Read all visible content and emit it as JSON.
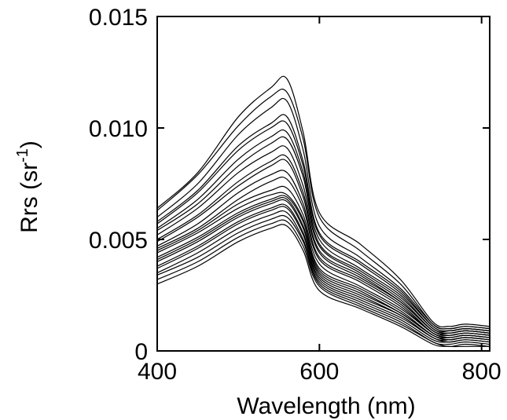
{
  "chart_data": {
    "type": "line",
    "title": "",
    "xlabel": "Wavelength (nm)",
    "ylabel_main": "Rrs (sr",
    "ylabel_sup": "-1",
    "ylabel_close": ")",
    "xlim": [
      400,
      810
    ],
    "ylim": [
      0,
      0.015
    ],
    "xticks": [
      400,
      600,
      800
    ],
    "xtick_labels": [
      "400",
      "600",
      "800"
    ],
    "yticks": [
      0,
      0.005,
      0.01,
      0.015
    ],
    "ytick_labels": [
      "0",
      "0.005",
      "0.010",
      "0.015"
    ],
    "grid": false,
    "legend": "none",
    "line_color": "#000000",
    "x": [
      400,
      450,
      500,
      540,
      560,
      580,
      600,
      650,
      700,
      740,
      760,
      780,
      810
    ],
    "series": [
      {
        "values": [
          0.0064,
          0.008,
          0.0105,
          0.0118,
          0.0122,
          0.0098,
          0.0062,
          0.0048,
          0.0032,
          0.0013,
          0.0011,
          0.0012,
          0.0011
        ]
      },
      {
        "values": [
          0.0063,
          0.0079,
          0.0101,
          0.0114,
          0.0116,
          0.0095,
          0.006,
          0.0045,
          0.003,
          0.0012,
          0.001,
          0.0011,
          0.001
        ]
      },
      {
        "values": [
          0.006,
          0.0075,
          0.0097,
          0.0109,
          0.0112,
          0.009,
          0.0056,
          0.0042,
          0.0028,
          0.0012,
          0.001,
          0.0011,
          0.001
        ]
      },
      {
        "values": [
          0.0058,
          0.0072,
          0.0092,
          0.0102,
          0.0105,
          0.0085,
          0.0053,
          0.004,
          0.0027,
          0.0011,
          0.0009,
          0.001,
          0.0009
        ]
      },
      {
        "values": [
          0.0057,
          0.0071,
          0.009,
          0.01,
          0.0102,
          0.0083,
          0.0052,
          0.0039,
          0.0026,
          0.0011,
          0.0009,
          0.001,
          0.0009
        ]
      },
      {
        "values": [
          0.0055,
          0.0068,
          0.0086,
          0.0096,
          0.0098,
          0.008,
          0.005,
          0.0037,
          0.0025,
          0.001,
          0.0009,
          0.001,
          0.0009
        ]
      },
      {
        "values": [
          0.0054,
          0.0066,
          0.0083,
          0.0093,
          0.0095,
          0.0078,
          0.0048,
          0.0036,
          0.0024,
          0.001,
          0.0008,
          0.0009,
          0.0008
        ]
      },
      {
        "values": [
          0.0052,
          0.0064,
          0.008,
          0.0089,
          0.0091,
          0.0074,
          0.0047,
          0.0035,
          0.0023,
          0.0009,
          0.0008,
          0.0009,
          0.0008
        ]
      },
      {
        "values": [
          0.005,
          0.0061,
          0.0076,
          0.0085,
          0.0087,
          0.0071,
          0.0045,
          0.0034,
          0.0022,
          0.0009,
          0.0008,
          0.0009,
          0.0008
        ]
      },
      {
        "values": [
          0.0049,
          0.006,
          0.0074,
          0.0083,
          0.0085,
          0.0069,
          0.0044,
          0.0033,
          0.0022,
          0.0009,
          0.0007,
          0.0008,
          0.0007
        ]
      },
      {
        "values": [
          0.0047,
          0.0057,
          0.0071,
          0.0079,
          0.008,
          0.0066,
          0.0042,
          0.0032,
          0.0021,
          0.0008,
          0.0007,
          0.0008,
          0.0007
        ]
      },
      {
        "values": [
          0.0046,
          0.0055,
          0.0068,
          0.0076,
          0.0077,
          0.0064,
          0.0041,
          0.0031,
          0.002,
          0.0008,
          0.0007,
          0.0008,
          0.0007
        ]
      },
      {
        "values": [
          0.0045,
          0.0054,
          0.0066,
          0.0072,
          0.0073,
          0.0061,
          0.0039,
          0.0029,
          0.0019,
          0.0008,
          0.0006,
          0.0007,
          0.0006
        ]
      },
      {
        "values": [
          0.0044,
          0.0053,
          0.0064,
          0.007,
          0.007,
          0.0059,
          0.0037,
          0.0028,
          0.0018,
          0.0007,
          0.0006,
          0.0007,
          0.0006
        ]
      },
      {
        "values": [
          0.0042,
          0.0051,
          0.0062,
          0.0068,
          0.0069,
          0.0058,
          0.0036,
          0.0027,
          0.0017,
          0.0007,
          0.0006,
          0.0007,
          0.0006
        ]
      },
      {
        "values": [
          0.0041,
          0.005,
          0.0061,
          0.0067,
          0.0068,
          0.0056,
          0.0035,
          0.0026,
          0.0017,
          0.0007,
          0.0005,
          0.0006,
          0.0005
        ]
      },
      {
        "values": [
          0.004,
          0.0049,
          0.006,
          0.0066,
          0.0067,
          0.0055,
          0.0034,
          0.0025,
          0.0016,
          0.0006,
          0.0005,
          0.0006,
          0.0005
        ]
      },
      {
        "values": [
          0.0038,
          0.0047,
          0.0058,
          0.0064,
          0.0065,
          0.0053,
          0.0033,
          0.0024,
          0.0016,
          0.0006,
          0.0005,
          0.0006,
          0.0005
        ]
      },
      {
        "values": [
          0.0037,
          0.0046,
          0.0057,
          0.0063,
          0.0064,
          0.0052,
          0.0032,
          0.0023,
          0.0015,
          0.0006,
          0.0004,
          0.0005,
          0.0004
        ]
      },
      {
        "values": [
          0.0035,
          0.0044,
          0.0055,
          0.0061,
          0.0062,
          0.005,
          0.0031,
          0.0022,
          0.0014,
          0.0005,
          0.0004,
          0.0005,
          0.0004
        ]
      },
      {
        "values": [
          0.0034,
          0.0042,
          0.0053,
          0.0059,
          0.006,
          0.0049,
          0.003,
          0.0021,
          0.0013,
          0.0004,
          0.0003,
          0.0004,
          0.0003
        ]
      },
      {
        "values": [
          0.0032,
          0.004,
          0.0051,
          0.0057,
          0.0058,
          0.0047,
          0.0029,
          0.002,
          0.0012,
          0.0004,
          0.0002,
          0.0003,
          0.0002
        ]
      },
      {
        "values": [
          0.003,
          0.0038,
          0.0049,
          0.0055,
          0.0056,
          0.0045,
          0.0027,
          0.0019,
          0.0011,
          0.0003,
          0.0002,
          0.0002,
          0.0002
        ]
      }
    ]
  }
}
